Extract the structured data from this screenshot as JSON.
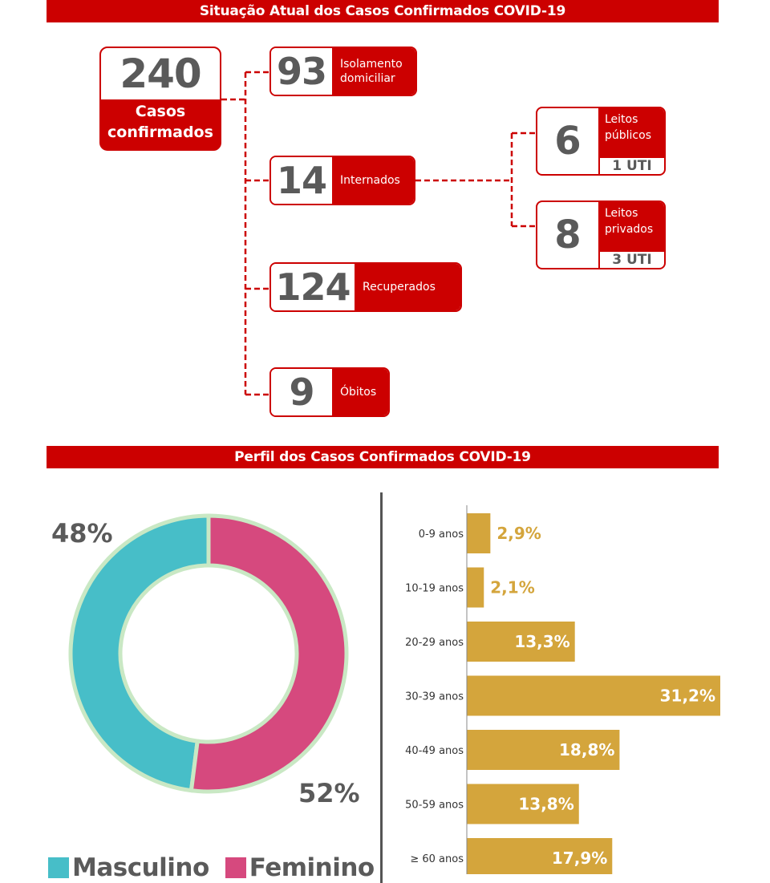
{
  "colors": {
    "red": "#cc0000",
    "male": "#47bec8",
    "female": "#d6497e",
    "donut_border": "#c9e8c4",
    "bar": "#d4a53c",
    "bar_label_outside": "#d4a53c",
    "bar_label_inside": "#ffffff"
  },
  "section_titles": {
    "current": "Situação Atual dos Casos Confirmados COVID-19",
    "profile": "Perfil dos Casos Confirmados COVID-19"
  },
  "total": {
    "value": "240",
    "label": "Casos\nconfirmados"
  },
  "statuses": [
    {
      "key": "isolation",
      "value": "93",
      "label": "Isolamento\ndomiciliar"
    },
    {
      "key": "hospitalized",
      "value": "14",
      "label": "Internados"
    },
    {
      "key": "recovered",
      "value": "124",
      "label": "Recuperados"
    },
    {
      "key": "deaths",
      "value": "9",
      "label": "Óbitos"
    }
  ],
  "beds": [
    {
      "key": "public",
      "value": "6",
      "label": "Leitos\npúblicos",
      "uti": "1 UTI"
    },
    {
      "key": "private",
      "value": "8",
      "label": "Leitos\nprivados",
      "uti": "3 UTI"
    }
  ],
  "chart_data": [
    {
      "type": "pie",
      "donut": true,
      "categories": [
        "Masculino",
        "Feminino"
      ],
      "values": [
        48,
        52
      ],
      "value_labels": [
        "48%",
        "52%"
      ],
      "legend": "bottom"
    },
    {
      "type": "bar",
      "orientation": "horizontal",
      "categories": [
        "0-9 anos",
        "10-19 anos",
        "20-29 anos",
        "30-39 anos",
        "40-49 anos",
        "50-59 anos",
        "≥ 60 anos"
      ],
      "values": [
        2.9,
        2.1,
        13.3,
        31.2,
        18.8,
        13.8,
        17.9
      ],
      "value_labels": [
        "2,9%",
        "2,1%",
        "13,3%",
        "31,2%",
        "18,8%",
        "13,8%",
        "17,9%"
      ],
      "xlim": [
        0,
        31.2
      ]
    }
  ]
}
